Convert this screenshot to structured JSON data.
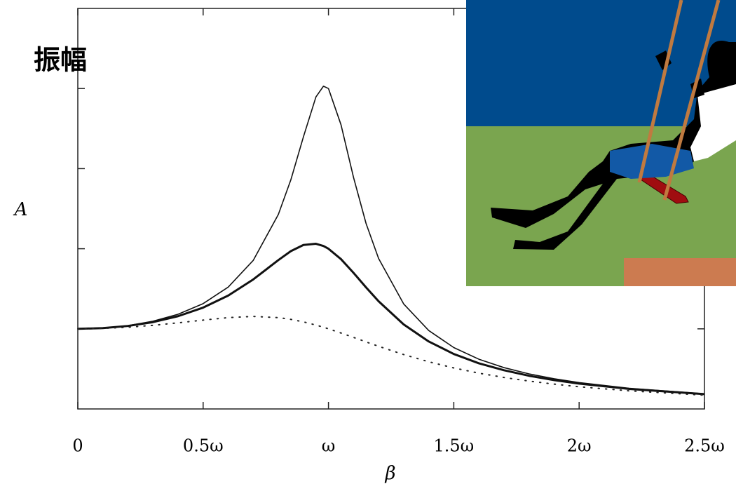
{
  "chart_data": {
    "type": "line",
    "annotation": "振幅",
    "ylabel": "A",
    "xlabel": "β",
    "x": [
      0,
      0.1,
      0.2,
      0.3,
      0.4,
      0.5,
      0.6,
      0.7,
      0.8,
      0.85,
      0.9,
      0.95,
      0.98,
      1.0,
      1.05,
      1.1,
      1.15,
      1.2,
      1.3,
      1.4,
      1.5,
      1.6,
      1.7,
      1.8,
      1.9,
      2.0,
      2.2,
      2.5
    ],
    "series": [
      {
        "color": "#111111",
        "style": "solid",
        "width": 1.6,
        "values": [
          1,
          1.01,
          1.04,
          1.095,
          1.182,
          1.315,
          1.521,
          1.855,
          2.428,
          2.861,
          3.396,
          3.895,
          4.029,
          4.0,
          3.548,
          2.89,
          2.315,
          1.878,
          1.311,
          0.979,
          0.766,
          0.621,
          0.516,
          0.438,
          0.377,
          0.329,
          0.258,
          0.189
        ]
      },
      {
        "color": "#111111",
        "style": "solid",
        "width": 3,
        "values": [
          1,
          1.009,
          1.036,
          1.084,
          1.158,
          1.265,
          1.415,
          1.617,
          1.858,
          1.97,
          2.047,
          2.062,
          2.034,
          2.0,
          1.87,
          1.699,
          1.517,
          1.344,
          1.055,
          0.842,
          0.686,
          0.57,
          0.483,
          0.414,
          0.36,
          0.316,
          0.25,
          0.185
        ]
      },
      {
        "color": "#222222",
        "style": "dotted",
        "width": 2,
        "values": [
          1,
          1.005,
          1.02,
          1.044,
          1.075,
          1.109,
          1.14,
          1.155,
          1.14,
          1.118,
          1.087,
          1.047,
          1.02,
          1.0,
          0.948,
          0.893,
          0.837,
          0.782,
          0.679,
          0.589,
          0.512,
          0.447,
          0.393,
          0.348,
          0.31,
          0.277,
          0.226,
          0.172
        ]
      }
    ],
    "xlim": [
      0,
      2.5
    ],
    "xticks": [
      0,
      {
        "value": 0.5,
        "label": "0.5ω"
      },
      {
        "value": 1,
        "label": "ω"
      },
      {
        "value": 1.5,
        "label": "1.5ω"
      },
      {
        "value": 2,
        "label": "2ω"
      },
      {
        "value": 2.5,
        "label": "2.5ω"
      }
    ],
    "ylim": [
      0,
      5
    ],
    "yticks": [
      1,
      2,
      3,
      4
    ],
    "grid": false
  }
}
